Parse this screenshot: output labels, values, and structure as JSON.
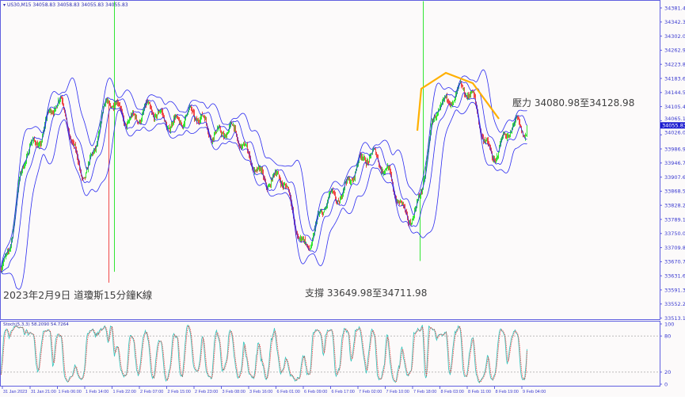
{
  "header": {
    "symbol": "US30,M15",
    "ohlc": "34058.83 34058.83 34055.83 34055.83"
  },
  "annotations": {
    "title": "2023年2月9日 道瓊斯15分鐘K線",
    "resistance": "壓力 34080.98至34128.98",
    "support": "支撐 33649.98至34711.98"
  },
  "colors": {
    "bull": "#33e633",
    "bear": "#f04848",
    "bands": "#2a2af0",
    "trend": "#ffb000",
    "stoch_main": "#40c8c0",
    "stoch_signal": "#f03030",
    "axis": "#6060e0"
  },
  "chart_data": {
    "type": "candlestick",
    "symbol": "US30",
    "timeframe": "M15",
    "price_ticks": [
      "34381.40",
      "34342.30",
      "34302.05",
      "34262.95",
      "34223.85",
      "34183.60",
      "34144.50",
      "34105.40",
      "34065.15",
      "34026.05",
      "33986.95",
      "33946.70",
      "33907.60",
      "33868.50",
      "33828.25",
      "33789.15",
      "33750.05",
      "33709.80",
      "33670.70",
      "33631.60",
      "33591.35",
      "33552.25",
      "33513.15"
    ],
    "current_price": "34055.83",
    "time_ticks": [
      "31 Jan 2023",
      "31 Jan 21:00",
      "1 Feb 06:00",
      "1 Feb 14:00",
      "1 Feb 22:00",
      "2 Feb 07:00",
      "2 Feb 15:00",
      "2 Feb 23:00",
      "3 Feb 08:00",
      "3 Feb 16:00",
      "6 Feb 01:00",
      "6 Feb 09:00",
      "6 Feb 17:00",
      "7 Feb 02:00",
      "7 Feb 10:00",
      "7 Feb 18:00",
      "8 Feb 03:00",
      "8 Feb 11:00",
      "8 Feb 19:00",
      "9 Feb 04:00"
    ],
    "approx_close_at_time_ticks": [
      33657,
      34019,
      34096,
      33942,
      34118,
      34074,
      34085,
      34063,
      34052,
      33964,
      33898,
      33745,
      33832,
      33964,
      33931,
      33788,
      34140,
      34129,
      33986,
      34052
    ],
    "ylim": [
      33513.15,
      34381.4
    ],
    "indicators": {
      "stochastic": {
        "label": "Stoch(5,3,3) 58.2090 54.7264",
        "main": 58.209,
        "signal": 54.7264,
        "levels": [
          20,
          80
        ],
        "ticks": [
          "100",
          "80",
          "20",
          "0"
        ]
      },
      "bands": "envelopes (blue)"
    }
  }
}
